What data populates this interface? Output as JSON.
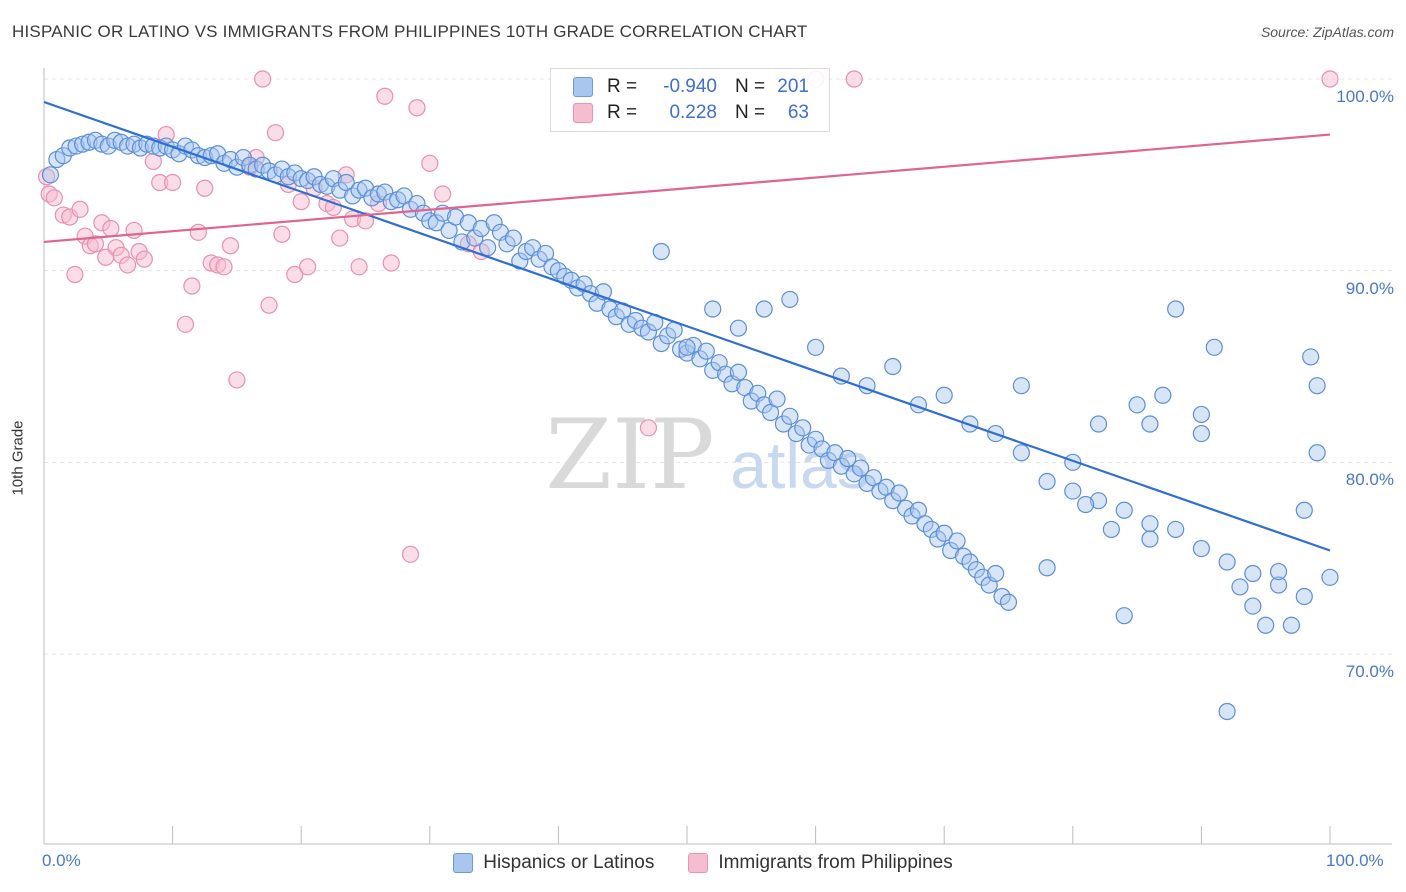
{
  "title": "HISPANIC OR LATINO VS IMMIGRANTS FROM PHILIPPINES 10TH GRADE CORRELATION CHART",
  "source": "Source: ZipAtlas.com",
  "watermark": {
    "zip": "ZIP",
    "atlas": "atlas"
  },
  "colors": {
    "blue_fill": "#a9c6ee",
    "blue_stroke": "#6b9ae0",
    "blue_line": "#2f6fd3",
    "pink_fill": "#f6bcd0",
    "pink_stroke": "#ec93b2",
    "pink_line": "#e0648f"
  },
  "legend": {
    "rows": [
      {
        "r_label": "R =",
        "r_value": "-0.940",
        "n_label": "N =",
        "n_value": "201"
      },
      {
        "r_label": "R =",
        "r_value": "0.228",
        "n_label": "N =",
        "n_value": "63"
      }
    ]
  },
  "bottom_legend": {
    "series1": "Hispanics or Latinos",
    "series2": "Immigrants from Philippines"
  },
  "chart_data": {
    "type": "scatter",
    "title": "HISPANIC OR LATINO VS IMMIGRANTS FROM PHILIPPINES 10TH GRADE CORRELATION CHART",
    "xlabel": "",
    "ylabel": "10th Grade",
    "xlim": [
      0,
      100
    ],
    "ylim": [
      60,
      100
    ],
    "x_tick_labels": [
      "0.0%",
      "100.0%"
    ],
    "y_ticks": [
      70,
      80,
      90,
      100
    ],
    "y_tick_labels": [
      "70.0%",
      "80.0%",
      "90.0%",
      "100.0%"
    ],
    "grid": true,
    "legend_position": "top-center",
    "series": [
      {
        "name": "Hispanics or Latinos",
        "color": "#a9c6ee",
        "trend": {
          "x": [
            0,
            100
          ],
          "y": [
            98.8,
            75.4
          ]
        },
        "points": [
          [
            0.5,
            95
          ],
          [
            1,
            95.8
          ],
          [
            1.5,
            96
          ],
          [
            2,
            96.4
          ],
          [
            2.5,
            96.5
          ],
          [
            3,
            96.6
          ],
          [
            3.5,
            96.7
          ],
          [
            4,
            96.8
          ],
          [
            4.5,
            96.6
          ],
          [
            5,
            96.5
          ],
          [
            5.5,
            96.8
          ],
          [
            6,
            96.7
          ],
          [
            6.5,
            96.5
          ],
          [
            7,
            96.6
          ],
          [
            7.5,
            96.4
          ],
          [
            8,
            96.6
          ],
          [
            8.5,
            96.5
          ],
          [
            9,
            96.4
          ],
          [
            9.5,
            96.5
          ],
          [
            10,
            96.3
          ],
          [
            10.5,
            96.1
          ],
          [
            11,
            96.5
          ],
          [
            11.5,
            96.3
          ],
          [
            12,
            96.0
          ],
          [
            12.5,
            95.9
          ],
          [
            13,
            96.0
          ],
          [
            13.5,
            96.1
          ],
          [
            14,
            95.6
          ],
          [
            14.5,
            95.8
          ],
          [
            15,
            95.4
          ],
          [
            15.5,
            95.9
          ],
          [
            16,
            95.5
          ],
          [
            16.5,
            95.3
          ],
          [
            17,
            95.5
          ],
          [
            17.5,
            95.2
          ],
          [
            18,
            95.0
          ],
          [
            18.5,
            95.3
          ],
          [
            19,
            94.9
          ],
          [
            19.5,
            95.1
          ],
          [
            20,
            94.8
          ],
          [
            20.5,
            94.7
          ],
          [
            21,
            94.9
          ],
          [
            21.5,
            94.5
          ],
          [
            22,
            94.4
          ],
          [
            22.5,
            94.8
          ],
          [
            23,
            94.2
          ],
          [
            23.5,
            94.6
          ],
          [
            24,
            93.9
          ],
          [
            24.5,
            94.2
          ],
          [
            25,
            94.3
          ],
          [
            25.5,
            93.8
          ],
          [
            26,
            94.0
          ],
          [
            26.5,
            94.1
          ],
          [
            27,
            93.6
          ],
          [
            27.5,
            93.7
          ],
          [
            28,
            93.9
          ],
          [
            28.5,
            93.2
          ],
          [
            29,
            93.5
          ],
          [
            29.5,
            93.0
          ],
          [
            30,
            92.6
          ],
          [
            30.5,
            92.5
          ],
          [
            31,
            93.0
          ],
          [
            31.5,
            92.1
          ],
          [
            32,
            92.8
          ],
          [
            32.5,
            91.5
          ],
          [
            33,
            92.5
          ],
          [
            33.5,
            91.7
          ],
          [
            34,
            92.2
          ],
          [
            34.5,
            91.2
          ],
          [
            35,
            92.5
          ],
          [
            35.5,
            92.0
          ],
          [
            36,
            91.4
          ],
          [
            36.5,
            91.7
          ],
          [
            37,
            90.5
          ],
          [
            37.5,
            91.0
          ],
          [
            38,
            91.2
          ],
          [
            38.5,
            90.6
          ],
          [
            39,
            90.9
          ],
          [
            39.5,
            90.2
          ],
          [
            40,
            90.0
          ],
          [
            40.5,
            89.7
          ],
          [
            41,
            89.5
          ],
          [
            41.5,
            89.1
          ],
          [
            42,
            89.3
          ],
          [
            42.5,
            88.8
          ],
          [
            43,
            88.3
          ],
          [
            43.5,
            88.9
          ],
          [
            44,
            88.0
          ],
          [
            44.5,
            87.6
          ],
          [
            45,
            87.9
          ],
          [
            45.5,
            87.2
          ],
          [
            46,
            87.4
          ],
          [
            46.5,
            87.0
          ],
          [
            47,
            86.8
          ],
          [
            47.5,
            87.3
          ],
          [
            48,
            86.2
          ],
          [
            48.5,
            86.6
          ],
          [
            49,
            86.9
          ],
          [
            49.5,
            85.9
          ],
          [
            50,
            85.7
          ],
          [
            50.5,
            86.1
          ],
          [
            51,
            85.4
          ],
          [
            51.5,
            85.8
          ],
          [
            52,
            84.8
          ],
          [
            52.5,
            85.2
          ],
          [
            53,
            84.6
          ],
          [
            53.5,
            84.1
          ],
          [
            54,
            84.7
          ],
          [
            54.5,
            83.9
          ],
          [
            55,
            83.2
          ],
          [
            55.5,
            83.6
          ],
          [
            56,
            83.0
          ],
          [
            56.5,
            82.6
          ],
          [
            57,
            83.3
          ],
          [
            57.5,
            82.0
          ],
          [
            58,
            82.4
          ],
          [
            58.5,
            81.5
          ],
          [
            59,
            81.8
          ],
          [
            59.5,
            80.9
          ],
          [
            60,
            81.2
          ],
          [
            60.5,
            80.7
          ],
          [
            61,
            80.1
          ],
          [
            61.5,
            80.5
          ],
          [
            62,
            79.8
          ],
          [
            62.5,
            80.2
          ],
          [
            63,
            79.4
          ],
          [
            63.5,
            79.7
          ],
          [
            64,
            78.9
          ],
          [
            64.5,
            79.2
          ],
          [
            65,
            78.5
          ],
          [
            65.5,
            78.7
          ],
          [
            66,
            78.0
          ],
          [
            66.5,
            78.4
          ],
          [
            67,
            77.6
          ],
          [
            67.5,
            77.2
          ],
          [
            68,
            77.5
          ],
          [
            68.5,
            76.8
          ],
          [
            69,
            76.5
          ],
          [
            69.5,
            76.0
          ],
          [
            70,
            76.3
          ],
          [
            70.5,
            75.4
          ],
          [
            71,
            75.9
          ],
          [
            71.5,
            75.1
          ],
          [
            72,
            74.8
          ],
          [
            72.5,
            74.4
          ],
          [
            73,
            74.0
          ],
          [
            73.5,
            73.6
          ],
          [
            74,
            74.2
          ],
          [
            74.5,
            73.0
          ],
          [
            75,
            72.7
          ],
          [
            48,
            91
          ],
          [
            50,
            86
          ],
          [
            52,
            88
          ],
          [
            54,
            87
          ],
          [
            56,
            88
          ],
          [
            58,
            88.5
          ],
          [
            60,
            86
          ],
          [
            62,
            84.5
          ],
          [
            64,
            84
          ],
          [
            66,
            85
          ],
          [
            68,
            83
          ],
          [
            70,
            83.5
          ],
          [
            72,
            82
          ],
          [
            74,
            81.5
          ],
          [
            76,
            80.5
          ],
          [
            78,
            79
          ],
          [
            80,
            78.5
          ],
          [
            82,
            78
          ],
          [
            84,
            77.5
          ],
          [
            86,
            76.8
          ],
          [
            88,
            76.5
          ],
          [
            90,
            75.5
          ],
          [
            92,
            74.8
          ],
          [
            94,
            74.2
          ],
          [
            96,
            73.6
          ],
          [
            98,
            73
          ],
          [
            99,
            80.5
          ],
          [
            100,
            74
          ],
          [
            98.5,
            85.5
          ],
          [
            99,
            84
          ],
          [
            91,
            86
          ],
          [
            88,
            88
          ],
          [
            85,
            83
          ],
          [
            82,
            82
          ],
          [
            80,
            80
          ],
          [
            76,
            84
          ],
          [
            78,
            74.5
          ],
          [
            84,
            72
          ],
          [
            86,
            76
          ],
          [
            90,
            81.5
          ],
          [
            92,
            67
          ],
          [
            94,
            72.5
          ],
          [
            95,
            71.5
          ],
          [
            96,
            74.3
          ],
          [
            97,
            71.5
          ],
          [
            98,
            77.5
          ],
          [
            93,
            73.5
          ],
          [
            90,
            82.5
          ],
          [
            86,
            82
          ],
          [
            87,
            83.5
          ],
          [
            83,
            76.5
          ],
          [
            81,
            77.8
          ]
        ]
      },
      {
        "name": "Immigrants from Philippines",
        "color": "#f6bcd0",
        "trend": {
          "x": [
            0,
            100
          ],
          "y": [
            91.5,
            97.1
          ]
        },
        "points": [
          [
            0.4,
            94.0
          ],
          [
            0.8,
            93.8
          ],
          [
            1.5,
            92.9
          ],
          [
            2,
            92.8
          ],
          [
            2.4,
            89.8
          ],
          [
            2.8,
            93.2
          ],
          [
            3.2,
            91.8
          ],
          [
            3.6,
            91.3
          ],
          [
            4,
            91.4
          ],
          [
            4.5,
            92.5
          ],
          [
            4.8,
            90.7
          ],
          [
            5.2,
            92.2
          ],
          [
            5.6,
            91.2
          ],
          [
            6,
            90.8
          ],
          [
            6.5,
            90.3
          ],
          [
            7,
            92.1
          ],
          [
            7.4,
            91.0
          ],
          [
            7.8,
            90.6
          ],
          [
            8.5,
            95.7
          ],
          [
            9,
            94.6
          ],
          [
            9.5,
            97.1
          ],
          [
            10,
            94.6
          ],
          [
            11,
            87.2
          ],
          [
            11.5,
            89.2
          ],
          [
            12,
            92.0
          ],
          [
            12.5,
            94.3
          ],
          [
            13,
            90.4
          ],
          [
            13.5,
            90.3
          ],
          [
            14,
            90.2
          ],
          [
            14.5,
            91.3
          ],
          [
            15,
            84.3
          ],
          [
            16,
            95.4
          ],
          [
            16.5,
            95.9
          ],
          [
            17,
            100
          ],
          [
            17.5,
            88.2
          ],
          [
            18,
            97.2
          ],
          [
            18.5,
            91.9
          ],
          [
            19,
            94.5
          ],
          [
            19.5,
            89.8
          ],
          [
            20,
            93.6
          ],
          [
            20.5,
            90.2
          ],
          [
            21,
            94.3
          ],
          [
            22,
            93.5
          ],
          [
            22.5,
            93.3
          ],
          [
            23,
            91.7
          ],
          [
            23.5,
            95.0
          ],
          [
            24,
            92.7
          ],
          [
            24.5,
            90.2
          ],
          [
            25,
            92.6
          ],
          [
            26,
            93.5
          ],
          [
            26.5,
            99.1
          ],
          [
            27,
            90.4
          ],
          [
            28.5,
            75.2
          ],
          [
            29,
            98.5
          ],
          [
            30,
            95.6
          ],
          [
            31,
            94.0
          ],
          [
            33,
            91.4
          ],
          [
            34,
            91.0
          ],
          [
            47,
            81.8
          ],
          [
            60,
            100
          ],
          [
            63,
            100
          ],
          [
            100,
            100
          ],
          [
            0.2,
            94.9
          ]
        ]
      }
    ]
  }
}
